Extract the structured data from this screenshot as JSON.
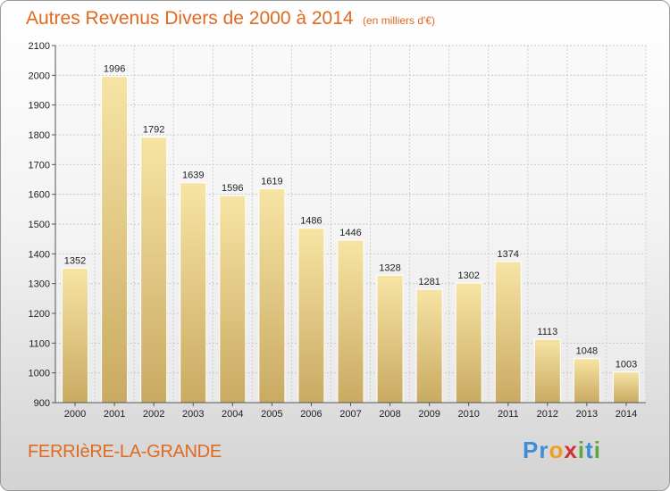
{
  "title": "Autres Revenus Divers de 2000 à 2014",
  "subtitle": "(en milliers d'€)",
  "commune": "FERRIèRE-LA-GRANDE",
  "logo": {
    "letters": [
      "P",
      "r",
      "o",
      "x",
      "i",
      "t",
      "i"
    ],
    "colors": [
      "#3d8ed4",
      "#3d8ed4",
      "#f0a020",
      "#d62f2f",
      "#5aa83a",
      "#3d8ed4",
      "#5aa83a"
    ]
  },
  "colors": {
    "accent": "#e06a1f",
    "bar_top": "#f7e4a4",
    "bar_bottom": "#c9aa62"
  },
  "chart_data": {
    "type": "bar",
    "categories": [
      "2000",
      "2001",
      "2002",
      "2003",
      "2004",
      "2005",
      "2006",
      "2007",
      "2008",
      "2009",
      "2010",
      "2011",
      "2012",
      "2013",
      "2014"
    ],
    "values": [
      1352,
      1996,
      1792,
      1639,
      1596,
      1619,
      1486,
      1446,
      1328,
      1281,
      1302,
      1374,
      1113,
      1048,
      1003
    ],
    "ylim": [
      900,
      2100
    ],
    "yticks": [
      900,
      1000,
      1100,
      1200,
      1300,
      1400,
      1500,
      1600,
      1700,
      1800,
      1900,
      2000,
      2100
    ],
    "grid": true
  }
}
